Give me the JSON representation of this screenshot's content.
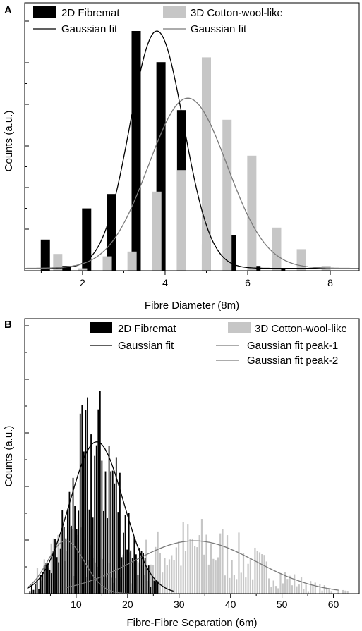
{
  "panels": [
    {
      "letter": "A"
    },
    {
      "letter": "B"
    }
  ],
  "colors": {
    "dark": "#000000",
    "light": "#c6c6c6",
    "fit_dark": "#000000",
    "fit_light": "#7a7a7a"
  },
  "chart_data": [
    {
      "type": "bar",
      "xlabel": "Fibre Diameter (8m)",
      "ylabel": "Counts (a.u.)",
      "xlim": [
        0.6,
        8.7
      ],
      "ylim": [
        0,
        100
      ],
      "x_ticks": [
        2,
        4,
        6,
        8
      ],
      "x_tick_labels": [
        "2",
        "4",
        "6",
        "8"
      ],
      "legend": {
        "bar_2d": "2D Fibremat",
        "bar_3d": "3D Cotton-wool-like",
        "fit_2d": "Gaussian fit",
        "fit_3d": "Gaussian fit"
      },
      "series": [
        {
          "x": [
            1.1,
            1.6,
            2.1,
            2.7,
            3.3,
            3.9,
            4.4,
            5.0,
            5.6,
            6.2,
            6.8
          ],
          "values": [
            13,
            2,
            26,
            32,
            100,
            87,
            67,
            11,
            15,
            2,
            1
          ]
        },
        {
          "x": [
            1.4,
            2.0,
            2.6,
            3.2,
            3.8,
            4.4,
            5.0,
            5.5,
            6.1,
            6.7,
            7.3,
            7.9
          ],
          "values": [
            7,
            1,
            6,
            8,
            33,
            42,
            89,
            63,
            48,
            18,
            9,
            2
          ]
        }
      ],
      "fits": [
        {
          "center": 3.8,
          "sigma": 0.65,
          "amplitude": 99,
          "baseline": 1
        },
        {
          "center": 4.55,
          "sigma": 0.95,
          "amplitude": 71,
          "baseline": 1
        }
      ]
    },
    {
      "type": "bar",
      "xlabel": "Fibre-Fibre Separation (6m)",
      "ylabel": "Counts (a.u.)",
      "xlim": [
        0,
        65
      ],
      "ylim": [
        0,
        100
      ],
      "x_ticks": [
        10,
        20,
        30,
        40,
        50,
        60
      ],
      "x_tick_labels": [
        "10",
        "20",
        "30",
        "40",
        "50",
        "60"
      ],
      "legend": {
        "bar_2d": "2D Fibremat",
        "bar_3d": "3D Cotton-wool-like",
        "fit_2d": "Gaussian fit",
        "fit_3d_1": "Gaussian fit peak-1",
        "fit_3d_2": "Gaussian fit  peak-2"
      },
      "hist_2d": {
        "x_start": 1,
        "x_end": 26,
        "step": 0.35,
        "center": 14,
        "sigma": 5,
        "amplitude": 70
      },
      "hist_3d": {
        "x_start": 2,
        "x_end": 63.5,
        "step": 0.45
      },
      "fits": [
        {
          "center": 14,
          "sigma": 5.2,
          "amplitude": 69
        },
        {
          "center": 8,
          "sigma": 3.6,
          "amplitude": 24
        },
        {
          "center": 33,
          "sigma": 12,
          "amplitude": 24
        }
      ]
    }
  ]
}
